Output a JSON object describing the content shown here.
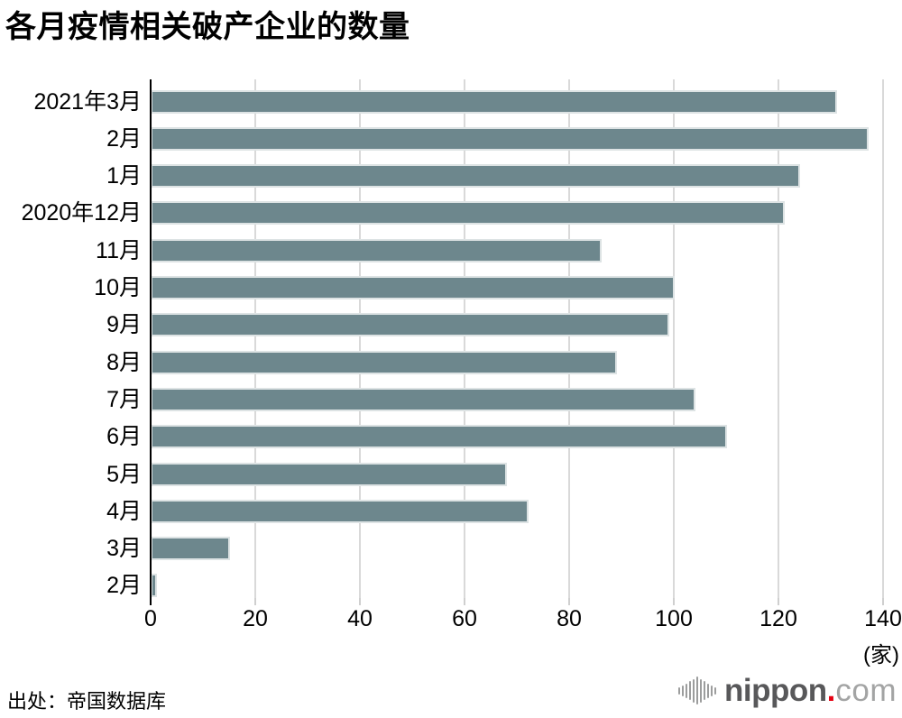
{
  "chart": {
    "unit_label": "(家)"
  },
  "chart_data": {
    "type": "bar",
    "orientation": "horizontal",
    "title": "各月疫情相关破产企业的数量",
    "categories": [
      "2021年3月",
      "2月",
      "1月",
      "2020年12月",
      "11月",
      "10月",
      "9月",
      "8月",
      "7月",
      "6月",
      "5月",
      "4月",
      "3月",
      "2月"
    ],
    "values": [
      131,
      137,
      124,
      121,
      86,
      100,
      99,
      89,
      104,
      110,
      68,
      72,
      15,
      1
    ],
    "x_ticks": [
      0,
      20,
      40,
      60,
      80,
      100,
      120,
      140
    ],
    "xlim": [
      0,
      140
    ],
    "x_unit": "(家)",
    "ylabel": "",
    "xlabel": "",
    "grid": true,
    "legend_position": "none",
    "bar_color": "#6d878d"
  },
  "footer": {
    "source": "出处：帝国数据库",
    "logo": {
      "name": "nippon.com",
      "bold_text": "nippon",
      "dot": ".",
      "light_text": "com"
    }
  },
  "colors": {
    "bar": "#6d878d",
    "bar_border": "#dde3e4",
    "grid": "#d9d9d9",
    "axis": "#000000",
    "logo_dark": "#58585a",
    "logo_light": "#a3a4a4",
    "logo_red": "#e60012",
    "logo_wave": "#9c9d9d"
  }
}
